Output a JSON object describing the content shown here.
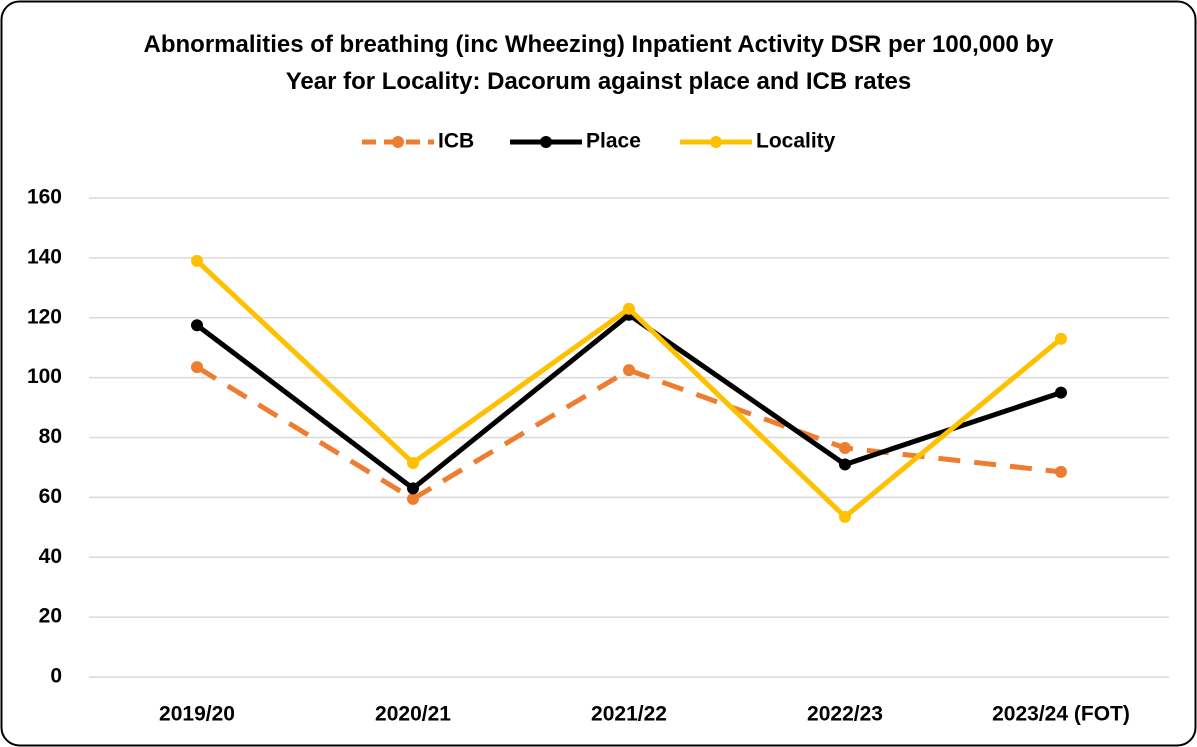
{
  "chart_data": {
    "type": "line",
    "title": "Abnormalities of breathing (inc Wheezing) Inpatient Activity DSR per 100,000 by Year for Locality: Dacorum against place and ICB rates",
    "categories": [
      "2019/20",
      "2020/21",
      "2021/22",
      "2022/23",
      "2023/24 (FOT)"
    ],
    "series": [
      {
        "name": "ICB",
        "color": "#ed7d31",
        "dashed": true,
        "values": [
          103.5,
          59.5,
          102.5,
          76.5,
          68.5
        ]
      },
      {
        "name": "Place",
        "color": "#000000",
        "dashed": false,
        "values": [
          117.5,
          63,
          121,
          71,
          95
        ]
      },
      {
        "name": "Locality",
        "color": "#ffc000",
        "dashed": false,
        "values": [
          139,
          71.5,
          123,
          53.5,
          113
        ]
      }
    ],
    "ylim": [
      0,
      160
    ],
    "yticks": [
      0,
      20,
      40,
      60,
      80,
      100,
      120,
      140,
      160
    ],
    "grid": true,
    "legend": "top"
  }
}
